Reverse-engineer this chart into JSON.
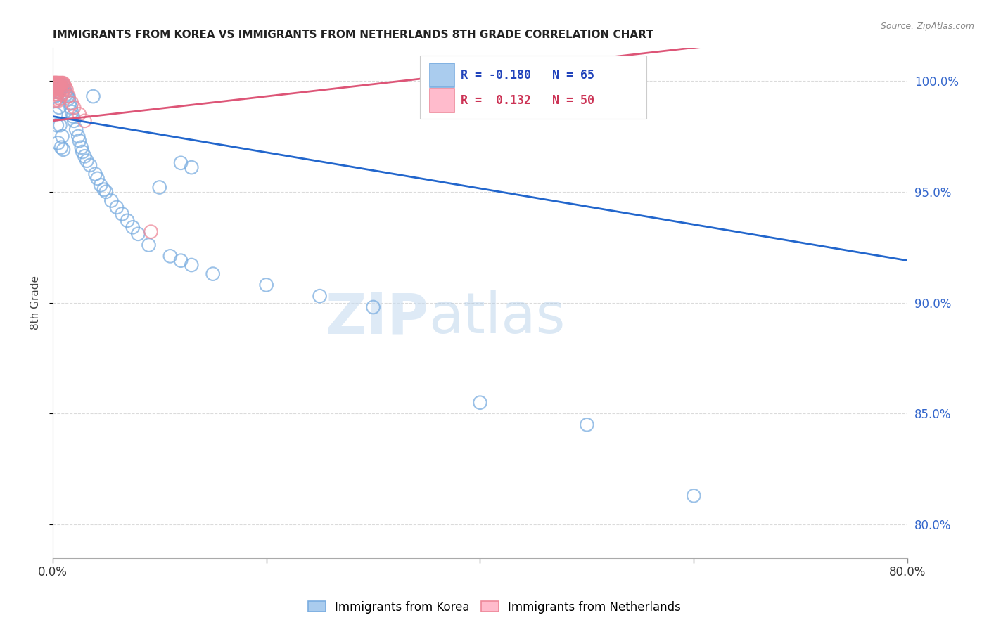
{
  "title": "IMMIGRANTS FROM KOREA VS IMMIGRANTS FROM NETHERLANDS 8TH GRADE CORRELATION CHART",
  "source": "Source: ZipAtlas.com",
  "ylabel": "8th Grade",
  "ylabel_right_ticks": [
    "100.0%",
    "95.0%",
    "90.0%",
    "85.0%",
    "80.0%"
  ],
  "ylabel_right_vals": [
    1.0,
    0.95,
    0.9,
    0.85,
    0.8
  ],
  "xlim": [
    0.0,
    0.8
  ],
  "ylim": [
    0.785,
    1.015
  ],
  "background_color": "#ffffff",
  "grid_color": "#cccccc",
  "blue_color": "#7aade0",
  "pink_color": "#ee8899",
  "trendline_blue": "#2266cc",
  "trendline_pink": "#dd5577",
  "blue_trend_x0": 0.0,
  "blue_trend_y0": 0.984,
  "blue_trend_x1": 0.8,
  "blue_trend_y1": 0.919,
  "pink_trend_x0": 0.0,
  "pink_trend_y0": 0.982,
  "pink_trend_x1": 0.2,
  "pink_trend_y1": 0.993,
  "blue_scatter_x": [
    0.001,
    0.002,
    0.002,
    0.003,
    0.003,
    0.003,
    0.004,
    0.004,
    0.005,
    0.005,
    0.005,
    0.006,
    0.006,
    0.007,
    0.007,
    0.008,
    0.008,
    0.009,
    0.009,
    0.01,
    0.01,
    0.011,
    0.012,
    0.013,
    0.014,
    0.015,
    0.016,
    0.017,
    0.018,
    0.019,
    0.02,
    0.022,
    0.024,
    0.025,
    0.027,
    0.028,
    0.03,
    0.032,
    0.035,
    0.038,
    0.04,
    0.042,
    0.045,
    0.048,
    0.05,
    0.055,
    0.06,
    0.065,
    0.07,
    0.075,
    0.08,
    0.09,
    0.1,
    0.11,
    0.12,
    0.13,
    0.15,
    0.2,
    0.25,
    0.3,
    0.12,
    0.13,
    0.6,
    0.4,
    0.5
  ],
  "blue_scatter_y": [
    0.995,
    0.998,
    0.993,
    0.998,
    0.991,
    0.985,
    0.997,
    0.98,
    0.998,
    0.995,
    0.972,
    0.995,
    0.988,
    0.997,
    0.98,
    0.998,
    0.97,
    0.997,
    0.975,
    0.998,
    0.969,
    0.996,
    0.995,
    0.994,
    0.993,
    0.992,
    0.99,
    0.988,
    0.986,
    0.984,
    0.982,
    0.978,
    0.975,
    0.973,
    0.97,
    0.968,
    0.966,
    0.964,
    0.962,
    0.993,
    0.958,
    0.956,
    0.953,
    0.951,
    0.95,
    0.946,
    0.943,
    0.94,
    0.937,
    0.934,
    0.931,
    0.926,
    0.952,
    0.921,
    0.919,
    0.917,
    0.913,
    0.908,
    0.903,
    0.898,
    0.963,
    0.961,
    0.813,
    0.855,
    0.845
  ],
  "pink_scatter_x": [
    0.001,
    0.001,
    0.001,
    0.001,
    0.001,
    0.002,
    0.002,
    0.002,
    0.002,
    0.002,
    0.002,
    0.002,
    0.002,
    0.003,
    0.003,
    0.003,
    0.003,
    0.003,
    0.003,
    0.003,
    0.004,
    0.004,
    0.004,
    0.004,
    0.004,
    0.005,
    0.005,
    0.005,
    0.005,
    0.006,
    0.006,
    0.006,
    0.007,
    0.007,
    0.007,
    0.008,
    0.008,
    0.009,
    0.009,
    0.01,
    0.01,
    0.011,
    0.012,
    0.013,
    0.015,
    0.018,
    0.02,
    0.025,
    0.03,
    0.092
  ],
  "pink_scatter_y": [
    0.999,
    0.999,
    0.998,
    0.997,
    0.996,
    0.999,
    0.999,
    0.998,
    0.997,
    0.996,
    0.995,
    0.994,
    0.991,
    0.999,
    0.999,
    0.998,
    0.997,
    0.996,
    0.995,
    0.992,
    0.999,
    0.999,
    0.998,
    0.997,
    0.994,
    0.999,
    0.998,
    0.997,
    0.991,
    0.999,
    0.998,
    0.995,
    0.999,
    0.998,
    0.992,
    0.999,
    0.996,
    0.999,
    0.994,
    0.999,
    0.996,
    0.998,
    0.997,
    0.996,
    0.993,
    0.99,
    0.988,
    0.985,
    0.982,
    0.932
  ]
}
